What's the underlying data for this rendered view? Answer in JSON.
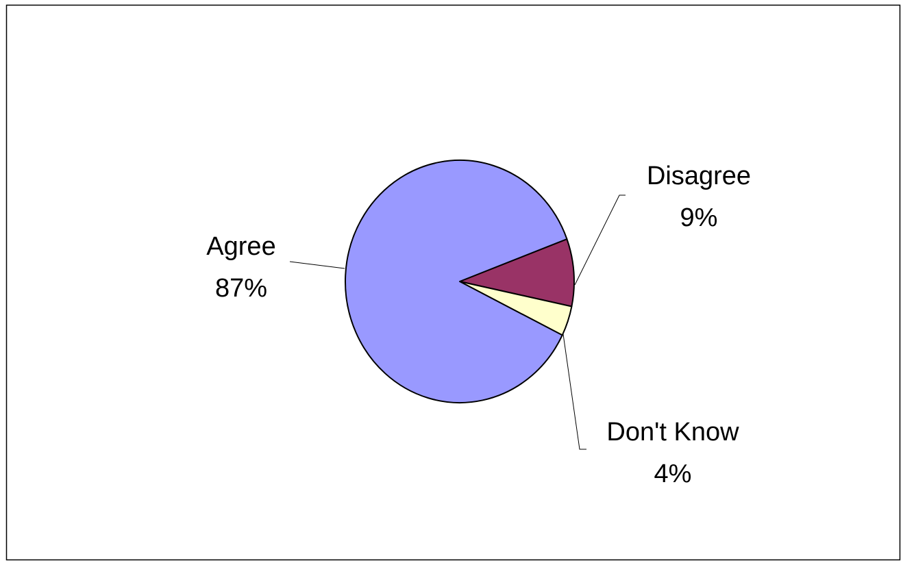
{
  "chart_data": {
    "type": "pie",
    "title": "",
    "slices": [
      {
        "label": "Agree",
        "value": 87,
        "value_label": "87%",
        "color": "#9999ff"
      },
      {
        "label": "Disagree",
        "value": 9,
        "value_label": "9%",
        "color": "#993366"
      },
      {
        "label": "Don't Know",
        "value": 4,
        "value_label": "4%",
        "color": "#ffffcc"
      }
    ],
    "legend": "none",
    "data_labels": "outside with leader lines"
  }
}
